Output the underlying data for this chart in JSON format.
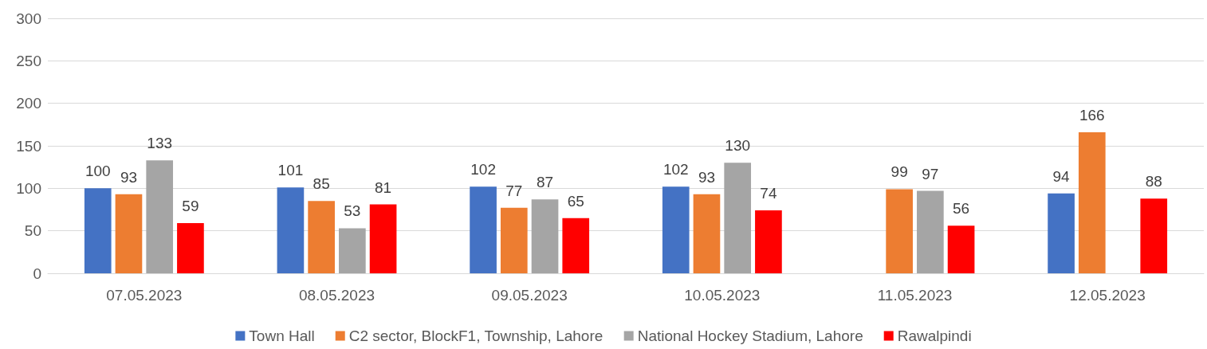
{
  "chart_data": {
    "type": "bar",
    "categories": [
      "07.05.2023",
      "08.05.2023",
      "09.05.2023",
      "10.05.2023",
      "11.05.2023",
      "12.05.2023"
    ],
    "series": [
      {
        "name": "Town Hall",
        "color": "#4472c4",
        "values": [
          100,
          101,
          102,
          102,
          null,
          94
        ]
      },
      {
        "name": "C2 sector, BlockF1, Township, Lahore",
        "color": "#ed7d31",
        "values": [
          93,
          85,
          77,
          93,
          99,
          166
        ]
      },
      {
        "name": "National Hockey Stadium, Lahore",
        "color": "#a5a5a5",
        "values": [
          133,
          53,
          87,
          130,
          97,
          null
        ]
      },
      {
        "name": "Rawalpindi",
        "color": "#ff0000",
        "values": [
          59,
          81,
          65,
          74,
          56,
          88
        ]
      }
    ],
    "ylim": [
      0,
      300
    ],
    "yticks": [
      0,
      50,
      100,
      150,
      200,
      250,
      300
    ],
    "grid": "y",
    "legend": "bottom",
    "data_labels": true
  }
}
